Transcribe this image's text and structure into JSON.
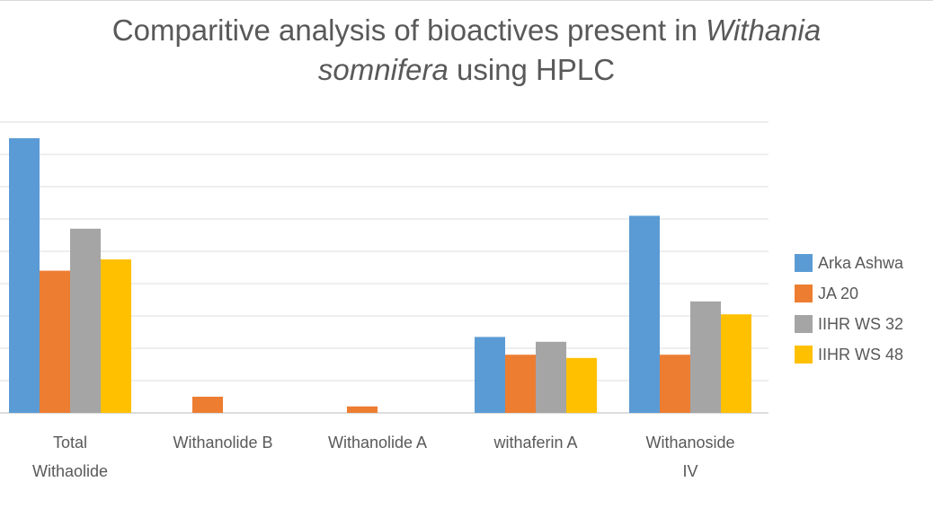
{
  "title": {
    "line1_prefix": "Comparitive analysis of  bioactives present in ",
    "line1_italic": "Withania",
    "line2_italic": "somnifera",
    "line2_suffix": " using HPLC"
  },
  "chart_data": {
    "type": "bar",
    "title": "Comparitive analysis of  bioactives present in Withania somnifera using HPLC",
    "categories": [
      [
        "Total",
        "Withaolide"
      ],
      [
        "Withanolide B"
      ],
      [
        "Withanolide A"
      ],
      [
        "withaferin A"
      ],
      [
        "Withanoside",
        "IV"
      ]
    ],
    "series": [
      {
        "name": "Arka Ashwa",
        "color": "#5b9bd5",
        "values": [
          8.5,
          0,
          0,
          2.35,
          6.1
        ]
      },
      {
        "name": "JA 20",
        "color": "#ed7d31",
        "values": [
          4.4,
          0.5,
          0.2,
          1.8,
          1.8
        ]
      },
      {
        "name": "IIHR WS 32",
        "color": "#a5a5a5",
        "values": [
          5.7,
          0,
          0,
          2.2,
          3.45
        ]
      },
      {
        "name": "IIHR WS 48",
        "color": "#ffc000",
        "values": [
          4.75,
          0,
          0,
          1.7,
          3.05
        ]
      }
    ],
    "ylim": [
      0,
      9
    ],
    "grid": true,
    "legend": "right"
  }
}
